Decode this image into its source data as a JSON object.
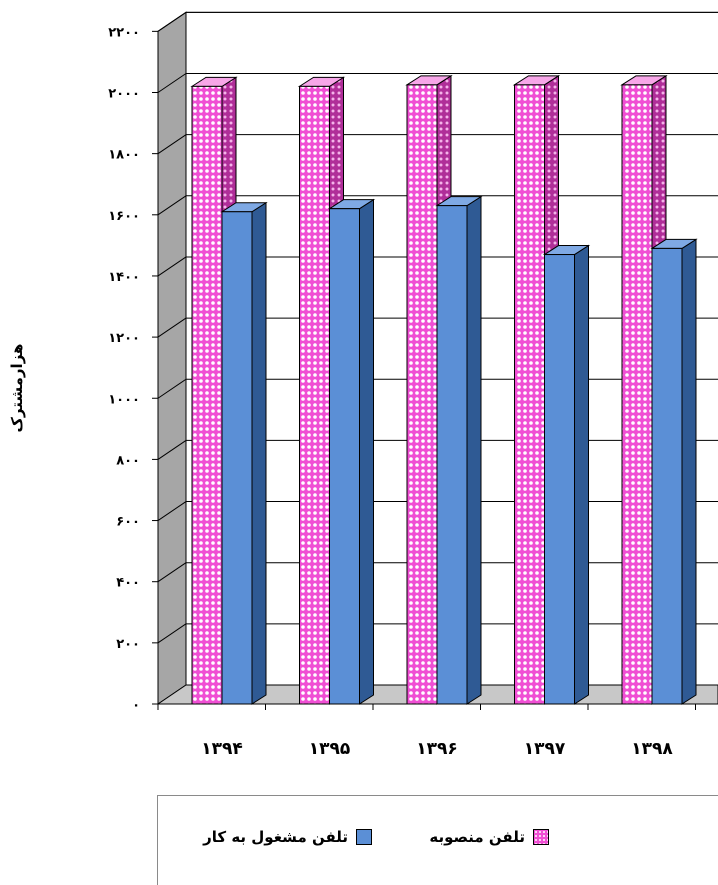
{
  "chart_data": {
    "type": "bar",
    "ylabel": "هزارمشترک",
    "categories": [
      "۱۳۹۴",
      "۱۳۹۵",
      "۱۳۹۶",
      "۱۳۹۷",
      "۱۳۹۸"
    ],
    "ylim": [
      0,
      2200
    ],
    "yticks": [
      0,
      200,
      400,
      600,
      800,
      1000,
      1200,
      1400,
      1600,
      1800,
      2000,
      2200
    ],
    "ytick_labels": [
      "۰",
      "۲۰۰",
      "۴۰۰",
      "۶۰۰",
      "۸۰۰",
      "۱۰۰۰",
      "۱۲۰۰",
      "۱۴۰۰",
      "۱۶۰۰",
      "۱۸۰۰",
      "۲۰۰۰",
      "۲۲۰۰"
    ],
    "grid": true,
    "three_d": true,
    "legend_position": "bottom",
    "series": [
      {
        "name": "تلفن منصوبه",
        "values": [
          2020,
          2020,
          2025,
          2025,
          2025
        ],
        "color": "#f04fd4",
        "pattern": "dotted"
      },
      {
        "name": "تلفن مشغول به کار",
        "values": [
          1610,
          1620,
          1630,
          1470,
          1490
        ],
        "color": "#5b8fd6"
      }
    ]
  }
}
